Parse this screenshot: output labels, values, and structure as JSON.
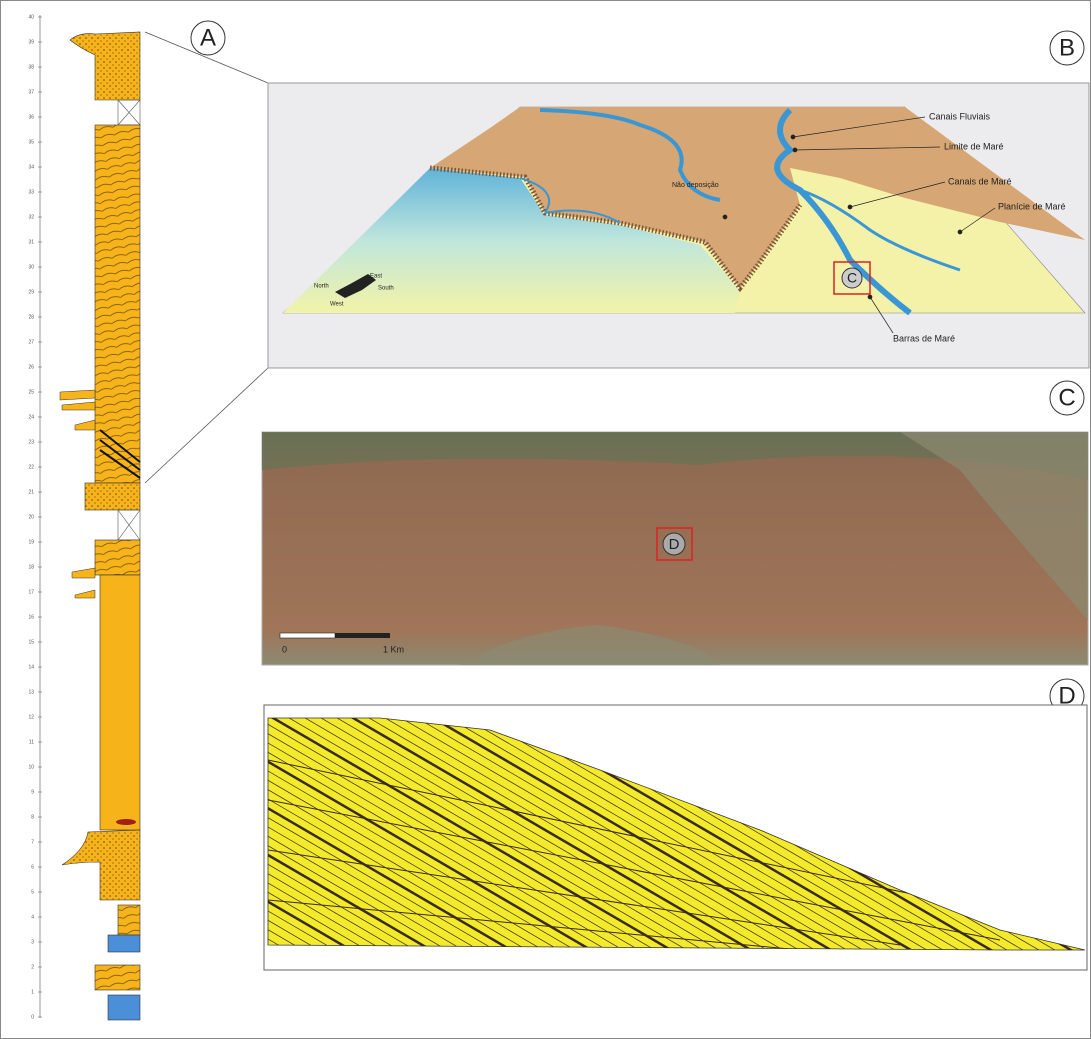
{
  "panels": {
    "a": {
      "label": "A",
      "column_ticks": [
        0,
        1,
        2,
        3,
        4,
        5,
        6,
        7,
        8,
        9,
        10,
        11,
        12,
        13,
        14,
        15,
        16,
        17,
        18,
        19,
        20,
        21,
        22,
        23,
        24,
        25,
        26,
        27,
        28,
        29,
        30,
        31,
        32,
        33,
        34,
        35,
        36,
        37,
        38,
        39,
        40
      ]
    },
    "b": {
      "label": "B",
      "labels": {
        "canais_fluviais": "Canais Fluviais",
        "limite_mare": "Limite de Maré",
        "nao_deposicao": "Não deposição",
        "canais_mare": "Canais de Maré",
        "planicie_mare": "Planície de Maré",
        "barras_mare": "Barras de Maré",
        "inset": "C"
      },
      "compass": {
        "east": "East",
        "north": "North",
        "south": "South",
        "west": "West"
      }
    },
    "c": {
      "label": "C",
      "inset": "D",
      "scale_start": "0",
      "scale_end": "1 Km"
    },
    "d": {
      "label": "D"
    }
  }
}
